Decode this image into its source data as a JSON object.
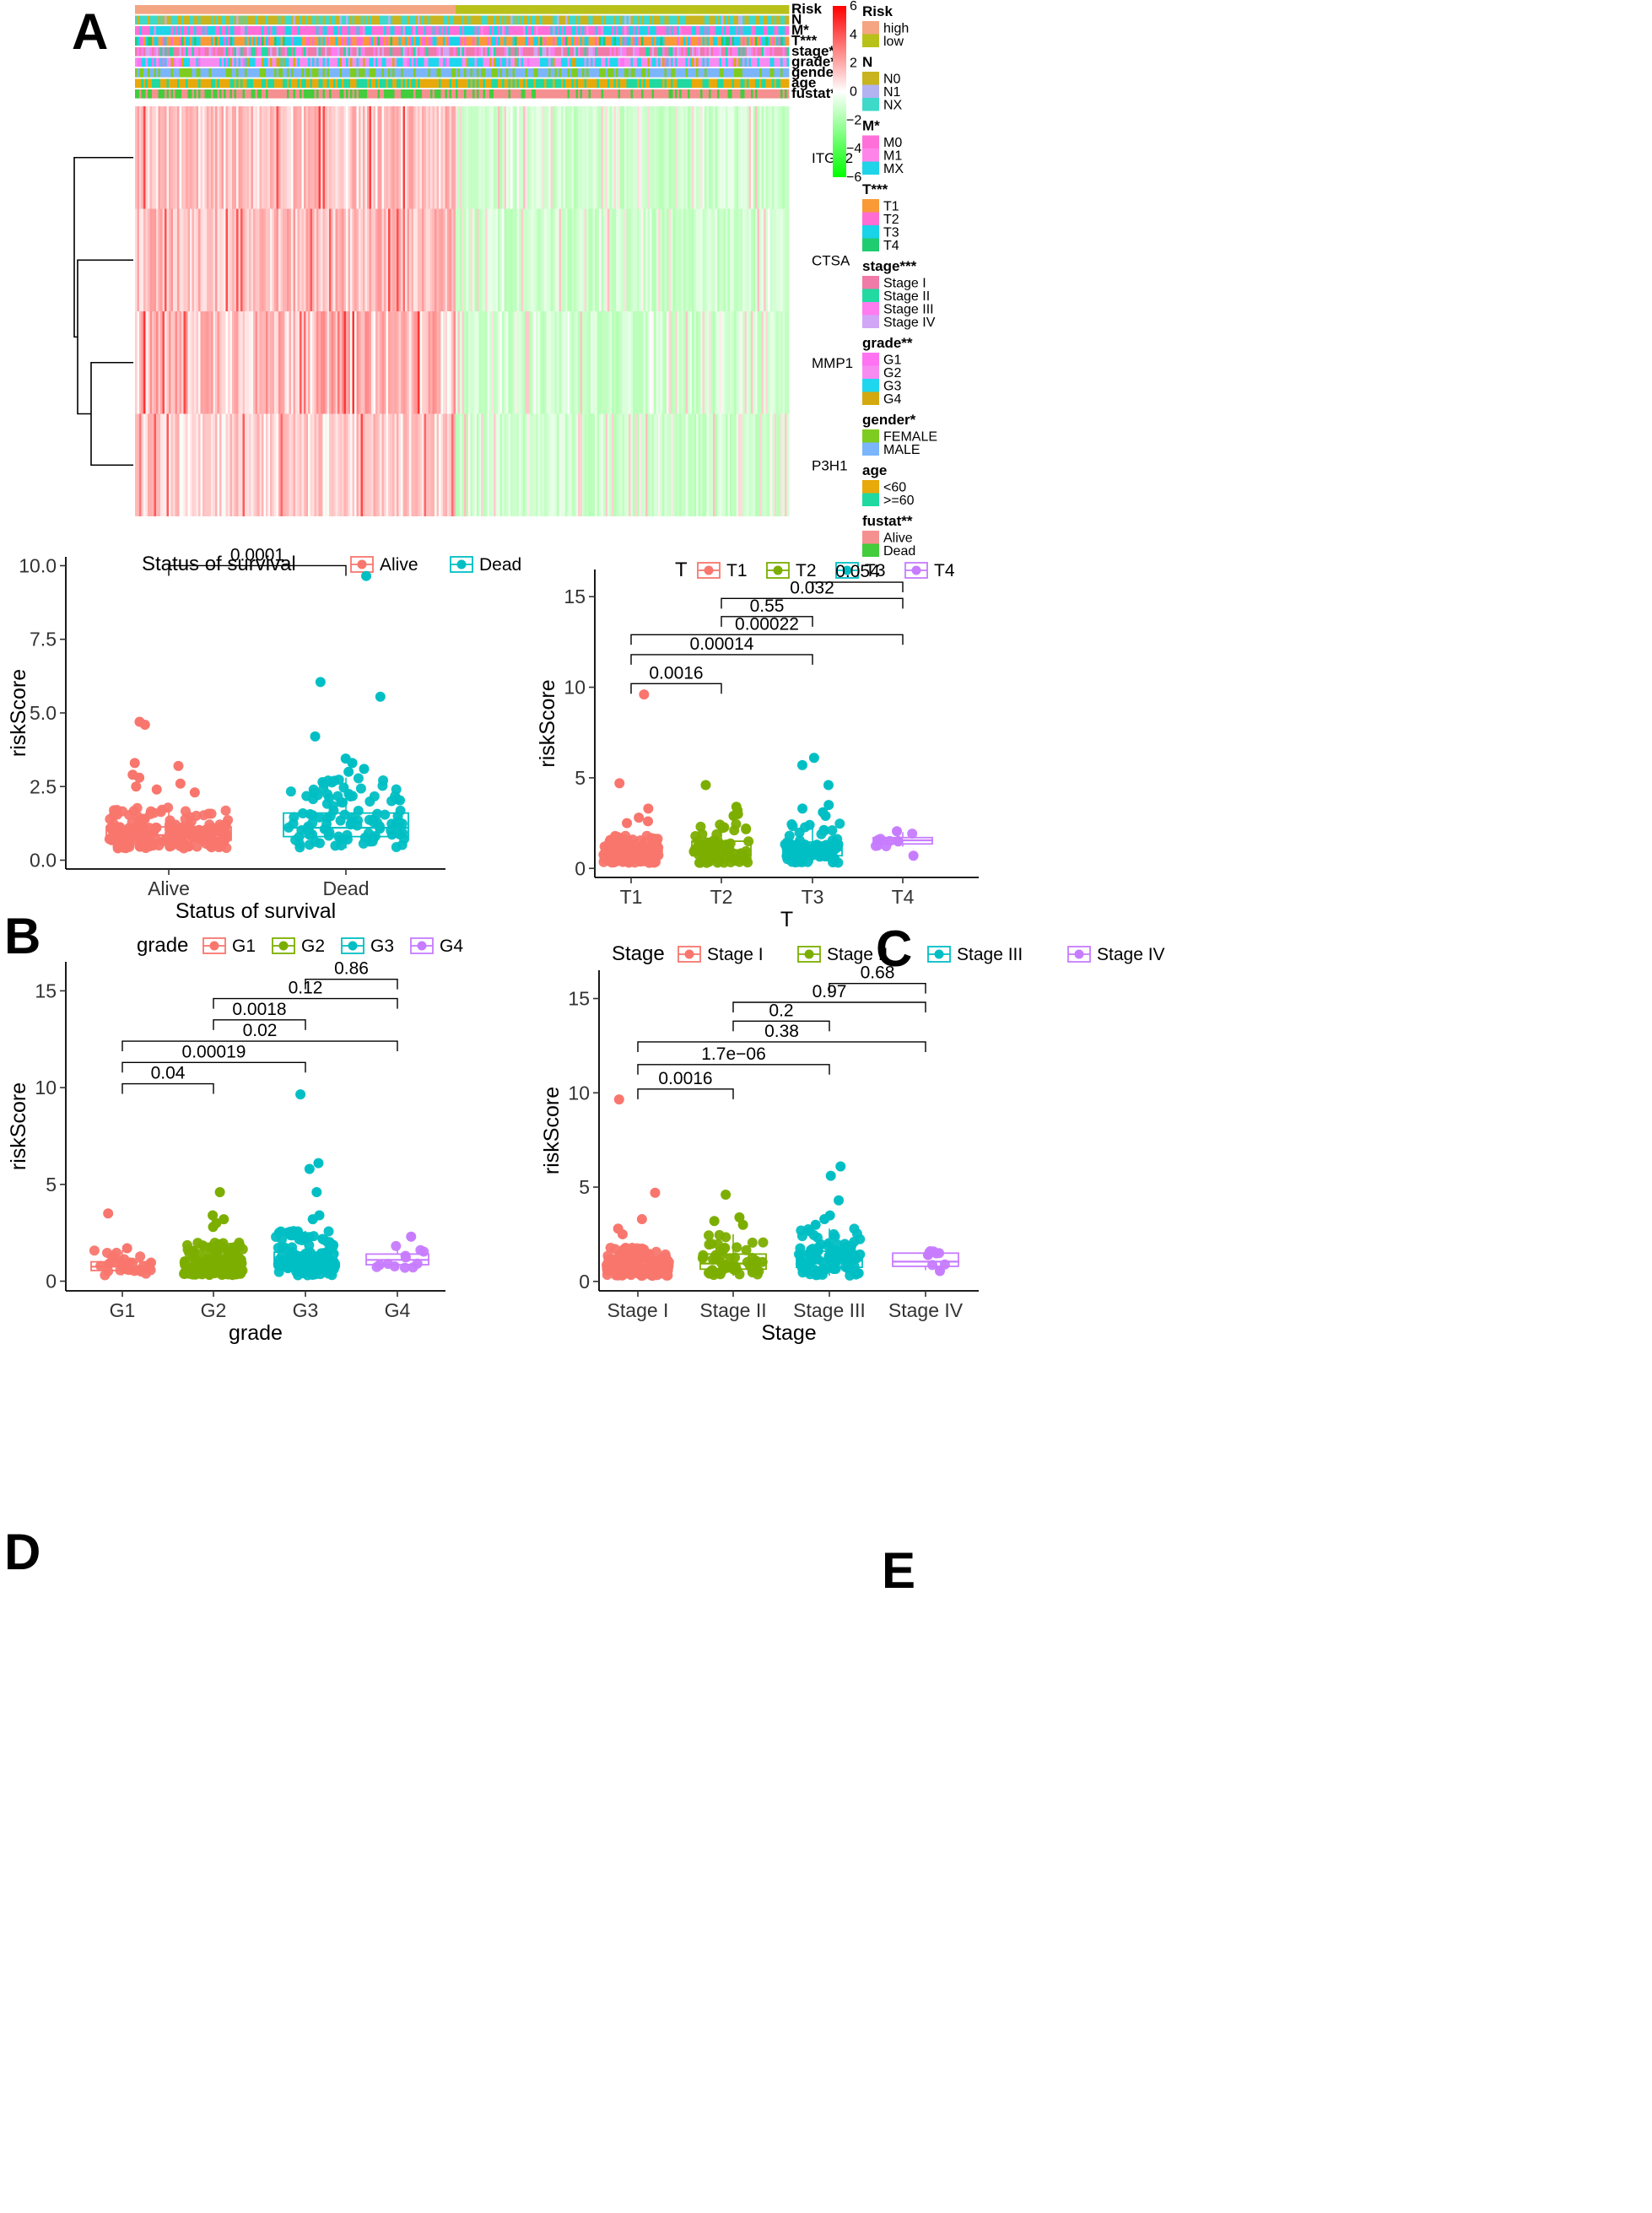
{
  "panel_letters": {
    "a": "A",
    "b": "B",
    "c": "C",
    "d": "D",
    "e": "E"
  },
  "colors": {
    "high": "#F4A582",
    "low": "#B8C11A",
    "N0": "#C8B41E",
    "N1": "#B3B3F2",
    "NX": "#3ED9C9",
    "M0": "#FF6FD9",
    "M1": "#FF84E9",
    "MX": "#1FD4E8",
    "T1": "#F99A36",
    "T2": "#FF6CD4",
    "T3": "#19D3E8",
    "T4": "#20CC70",
    "StageI": "#F07AA8",
    "StageII": "#22D9A2",
    "StageIII": "#FF7CF0",
    "StageIV": "#D2A6F7",
    "G1": "#FF72F2",
    "G2": "#F78BF2",
    "G3": "#1FD6EF",
    "G4": "#D3A90F",
    "FEMALE": "#7FCC20",
    "MALE": "#7BB5FB",
    "lt60": "#E8A90A",
    "ge60": "#1FD9A0",
    "Alive": "#F59090",
    "Dead": "#43CC3B",
    "series1": "#F8766D",
    "series2": "#7CAE00",
    "series3": "#00BFC4",
    "series4": "#C77CFF"
  },
  "chart_data": [
    {
      "panel": "A",
      "type": "heatmap",
      "title": "",
      "annotations": [
        {
          "label": "Risk",
          "levels": [
            "high",
            "low"
          ]
        },
        {
          "label": "N",
          "levels": [
            "N0",
            "N1",
            "NX"
          ]
        },
        {
          "label": "M*",
          "levels": [
            "M0",
            "M1",
            "MX"
          ]
        },
        {
          "label": "T***",
          "levels": [
            "T1",
            "T2",
            "T3",
            "T4"
          ]
        },
        {
          "label": "stage***",
          "levels": [
            "Stage I",
            "Stage II",
            "Stage III",
            "Stage IV"
          ]
        },
        {
          "label": "grade**",
          "levels": [
            "G1",
            "G2",
            "G3",
            "G4"
          ]
        },
        {
          "label": "gender*",
          "levels": [
            "FEMALE",
            "MALE"
          ]
        },
        {
          "label": "age",
          "levels": [
            "<60",
            ">=60"
          ]
        },
        {
          "label": "fustat**",
          "levels": [
            "Alive",
            "Dead"
          ]
        }
      ],
      "rows": [
        "ITGA2",
        "CTSA",
        "MMP1",
        "P3H1"
      ],
      "color_scale": {
        "min": -6,
        "max": 6,
        "ticks": [
          "6",
          "4",
          "2",
          "0",
          "−2",
          "−4",
          "−6"
        ],
        "low_color": "#00FF00",
        "mid_color": "#FFFFFF",
        "high_color": "#FF0000"
      },
      "risk_split_fraction": 0.49
    },
    {
      "panel": "B",
      "type": "box",
      "categories": [
        "Alive",
        "Dead"
      ],
      "series_colors": [
        "#F8766D",
        "#00BFC4"
      ],
      "xlabel": "Status of survival",
      "ylabel": "riskScore",
      "ylim": [
        -0.3,
        10.3
      ],
      "yticks": [
        0.0,
        2.5,
        5.0,
        7.5,
        10.0
      ],
      "ytick_labels": [
        "0.0",
        "2.5",
        "5.0",
        "7.5",
        "10.0"
      ],
      "legend_title": "Status of survival",
      "legend_labels": [
        "Alive",
        "Dead"
      ],
      "boxes": [
        {
          "q1": 0.68,
          "median": 0.85,
          "q3": 1.13,
          "whisker_low": 0.4,
          "whisker_high": 1.8
        },
        {
          "q1": 0.8,
          "median": 1.1,
          "q3": 1.6,
          "whisker_low": 0.4,
          "whisker_high": 2.8
        }
      ],
      "outliers": [
        [
          4.7,
          4.6,
          3.3,
          3.2,
          2.9,
          2.8,
          2.6,
          2.5,
          2.4,
          2.3
        ],
        [
          9.65,
          6.05,
          5.55,
          4.2,
          3.45,
          3.3,
          3.1,
          3.0
        ]
      ],
      "n_points": [
        200,
        110
      ],
      "comparisons": [
        {
          "from": 0,
          "to": 1,
          "label": "0.0001",
          "y": 10.0
        }
      ]
    },
    {
      "panel": "C",
      "type": "box",
      "categories": [
        "T1",
        "T2",
        "T3",
        "T4"
      ],
      "series_colors": [
        "#F8766D",
        "#7CAE00",
        "#00BFC4",
        "#C77CFF"
      ],
      "xlabel": "T",
      "ylabel": "riskScore",
      "ylim": [
        -0.5,
        16.5
      ],
      "yticks": [
        0,
        5,
        10,
        15
      ],
      "ytick_labels": [
        "0",
        "5",
        "10",
        "15"
      ],
      "legend_title": "T",
      "legend_labels": [
        "T1",
        "T2",
        "T3",
        "T4"
      ],
      "boxes": [
        {
          "q1": 0.6,
          "median": 0.8,
          "q3": 1.05,
          "whisker_low": 0.3,
          "whisker_high": 1.8
        },
        {
          "q1": 0.7,
          "median": 1.0,
          "q3": 1.5,
          "whisker_low": 0.3,
          "whisker_high": 2.6
        },
        {
          "q1": 0.7,
          "median": 1.0,
          "q3": 1.45,
          "whisker_low": 0.3,
          "whisker_high": 2.5
        },
        {
          "q1": 1.35,
          "median": 1.55,
          "q3": 1.7,
          "whisker_low": 1.2,
          "whisker_high": 2.0
        }
      ],
      "outliers": [
        [
          9.6,
          4.7,
          3.3,
          2.8,
          2.6,
          2.5
        ],
        [
          4.6,
          3.4,
          3.2,
          3.0,
          2.9
        ],
        [
          6.1,
          5.7,
          4.6,
          3.5,
          3.3,
          3.1,
          2.9
        ],
        [
          0.7,
          2.05
        ]
      ],
      "n_points": [
        180,
        80,
        90,
        9
      ],
      "comparisons": [
        {
          "from": 0,
          "to": 1,
          "label": "0.0016",
          "y": 10.2
        },
        {
          "from": 0,
          "to": 2,
          "label": "0.00014",
          "y": 11.8
        },
        {
          "from": 0,
          "to": 3,
          "label": "0.00022",
          "y": 12.9
        },
        {
          "from": 1,
          "to": 2,
          "label": "0.55",
          "y": 13.9
        },
        {
          "from": 1,
          "to": 3,
          "label": "0.032",
          "y": 14.9
        },
        {
          "from": 2,
          "to": 3,
          "label": "0.054",
          "y": 15.8
        }
      ]
    },
    {
      "panel": "D",
      "type": "box",
      "categories": [
        "G1",
        "G2",
        "G3",
        "G4"
      ],
      "series_colors": [
        "#F8766D",
        "#7CAE00",
        "#00BFC4",
        "#C77CFF"
      ],
      "xlabel": "grade",
      "ylabel": "riskScore",
      "ylim": [
        -0.5,
        16.5
      ],
      "yticks": [
        0,
        5,
        10,
        15
      ],
      "ytick_labels": [
        "0",
        "5",
        "10",
        "15"
      ],
      "legend_title": "grade",
      "legend_labels": [
        "G1",
        "G2",
        "G3",
        "G4"
      ],
      "boxes": [
        {
          "q1": 0.55,
          "median": 0.75,
          "q3": 1.0,
          "whisker_low": 0.3,
          "whisker_high": 1.6
        },
        {
          "q1": 0.65,
          "median": 0.85,
          "q3": 1.2,
          "whisker_low": 0.3,
          "whisker_high": 2.0
        },
        {
          "q1": 0.75,
          "median": 1.05,
          "q3": 1.5,
          "whisker_low": 0.3,
          "whisker_high": 2.6
        },
        {
          "q1": 0.85,
          "median": 1.1,
          "q3": 1.4,
          "whisker_low": 0.6,
          "whisker_high": 2.0
        }
      ],
      "outliers": [
        [
          3.5,
          1.7
        ],
        [
          4.6,
          3.4,
          3.2,
          3.0,
          2.8
        ],
        [
          9.65,
          6.1,
          5.8,
          4.6,
          3.4,
          3.2
        ],
        [
          2.3
        ]
      ],
      "n_points": [
        30,
        160,
        130,
        12
      ],
      "comparisons": [
        {
          "from": 0,
          "to": 1,
          "label": "0.04",
          "y": 10.2
        },
        {
          "from": 0,
          "to": 2,
          "label": "0.00019",
          "y": 11.3
        },
        {
          "from": 0,
          "to": 3,
          "label": "0.02",
          "y": 12.4
        },
        {
          "from": 1,
          "to": 2,
          "label": "0.0018",
          "y": 13.5
        },
        {
          "from": 1,
          "to": 3,
          "label": "0.12",
          "y": 14.6
        },
        {
          "from": 2,
          "to": 3,
          "label": "0.86",
          "y": 15.6
        }
      ]
    },
    {
      "panel": "E",
      "type": "box",
      "categories": [
        "Stage I",
        "Stage II",
        "Stage III",
        "Stage IV"
      ],
      "series_colors": [
        "#F8766D",
        "#7CAE00",
        "#00BFC4",
        "#C77CFF"
      ],
      "xlabel": "Stage",
      "ylabel": "riskScore",
      "ylim": [
        -0.5,
        16.5
      ],
      "yticks": [
        0,
        5,
        10,
        15
      ],
      "ytick_labels": [
        "0",
        "5",
        "10",
        "15"
      ],
      "legend_title": "Stage",
      "legend_labels": [
        "Stage I",
        "Stage II",
        "Stage III",
        "Stage IV"
      ],
      "boxes": [
        {
          "q1": 0.6,
          "median": 0.8,
          "q3": 1.05,
          "whisker_low": 0.3,
          "whisker_high": 1.8
        },
        {
          "q1": 0.65,
          "median": 0.95,
          "q3": 1.45,
          "whisker_low": 0.3,
          "whisker_high": 2.5
        },
        {
          "q1": 0.75,
          "median": 1.1,
          "q3": 1.6,
          "whisker_low": 0.3,
          "whisker_high": 2.8
        },
        {
          "q1": 0.8,
          "median": 1.05,
          "q3": 1.5,
          "whisker_low": 0.6,
          "whisker_high": 1.7
        }
      ],
      "outliers": [
        [
          9.65,
          4.7,
          3.3,
          2.8,
          2.5
        ],
        [
          4.6,
          3.4,
          3.2,
          3.0
        ],
        [
          6.1,
          5.6,
          4.3,
          3.5,
          3.3,
          3.0
        ],
        [
          1.6,
          1.4,
          0.55
        ]
      ],
      "n_points": [
        190,
        55,
        95,
        5
      ],
      "comparisons": [
        {
          "from": 0,
          "to": 1,
          "label": "0.0016",
          "y": 10.2
        },
        {
          "from": 0,
          "to": 2,
          "label": "1.7e−06",
          "y": 11.5
        },
        {
          "from": 0,
          "to": 3,
          "label": "0.38",
          "y": 12.7
        },
        {
          "from": 1,
          "to": 2,
          "label": "0.2",
          "y": 13.8
        },
        {
          "from": 1,
          "to": 3,
          "label": "0.97",
          "y": 14.8
        },
        {
          "from": 2,
          "to": 3,
          "label": "0.68",
          "y": 15.8
        }
      ]
    }
  ]
}
